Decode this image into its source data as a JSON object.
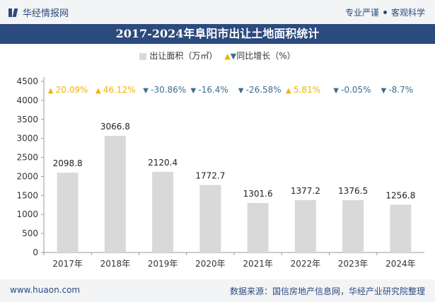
{
  "header": {
    "brand": "华经情报网",
    "right_text_1": "专业严谨",
    "right_text_2": "客观科学"
  },
  "colors": {
    "brand_blue": "#2b4a7e",
    "bar_gray": "#d9d9d9",
    "up_yellow": "#f0b400",
    "down_blue": "#3b6e8f"
  },
  "footer": {
    "website": "www.huaon.com",
    "source": "数据来源：国信房地产信息网，华经产业研究院整理"
  },
  "chart_data": {
    "type": "bar",
    "title": "2017-2024年阜阳市出让土地面积统计",
    "categories": [
      "2017年",
      "2018年",
      "2019年",
      "2020年",
      "2021年",
      "2022年",
      "2023年",
      "2024年"
    ],
    "series": [
      {
        "name": "出让面积（万㎡）",
        "values": [
          2098.8,
          3066.8,
          2120.4,
          1772.7,
          1301.6,
          1377.2,
          1376.5,
          1256.8
        ]
      },
      {
        "name": "同比增长（%）",
        "values": [
          20.09,
          46.12,
          -30.86,
          -16.4,
          -26.58,
          5.81,
          -0.05,
          -8.7
        ]
      }
    ],
    "growth_labels": [
      "20.09%",
      "46.12%",
      "-30.86%",
      "-16.4%",
      "-26.58%",
      "5.81%",
      "-0.05%",
      "-8.7%"
    ],
    "legend_bar": "出让面积（万㎡）",
    "legend_growth": "同比增长（%）",
    "yticks": [
      0,
      500,
      1000,
      1500,
      2000,
      2500,
      3000,
      3500,
      4000,
      4500
    ],
    "ylim": [
      0,
      4500
    ],
    "xlabel": "",
    "ylabel": ""
  }
}
